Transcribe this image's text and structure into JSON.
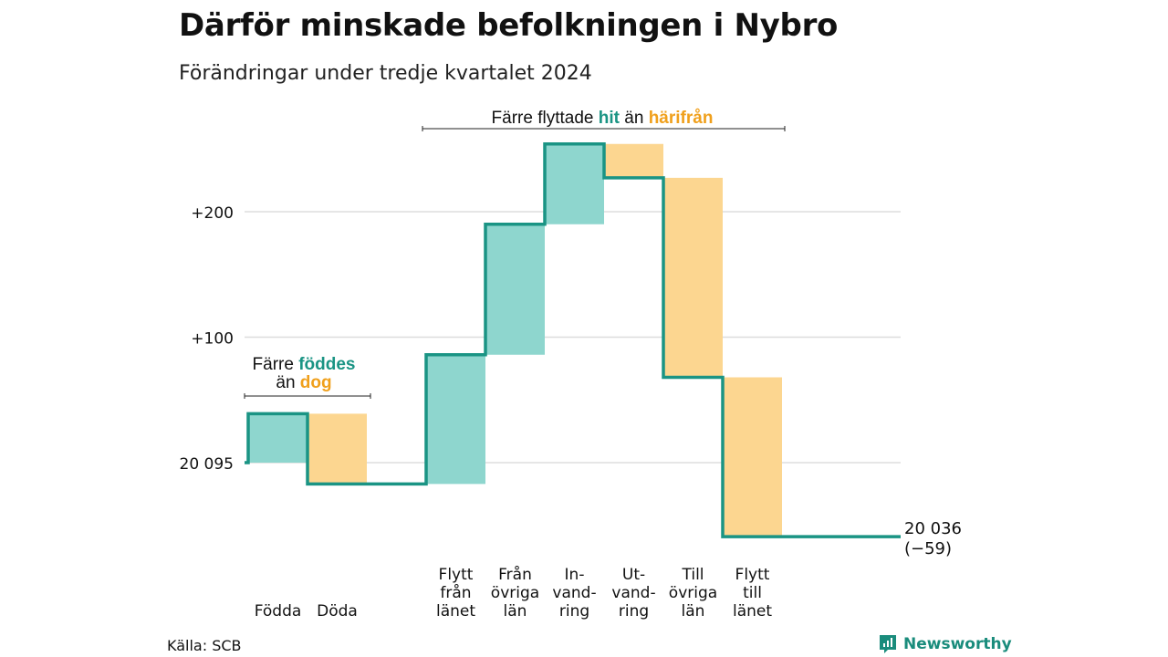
{
  "title": "Därför minskade befolkningen i Nybro",
  "subtitle": "Förändringar under tredje kvartalet 2024",
  "source": "Källa: SCB",
  "brand": "Newsworthy",
  "colors": {
    "increase": "#8ed6ce",
    "decrease": "#fcd690",
    "line": "#1a9484",
    "accent_teal": "#1a9484",
    "accent_orange": "#f0a01c",
    "grid": "#dddddd"
  },
  "annotations": {
    "births": {
      "pre": "Färre ",
      "a": "föddes",
      "mid": "än ",
      "b": "dog"
    },
    "migration": {
      "pre": "Färre flyttade ",
      "a": "hit",
      "mid": " än ",
      "b": "härifrån"
    }
  },
  "chart_data": {
    "type": "waterfall",
    "base": 20095,
    "end_label": "20 036",
    "end_change": "(−59)",
    "ylim": [
      -59,
      257
    ],
    "y_ticks": [
      {
        "value": 0,
        "label": "20 095"
      },
      {
        "value": 100,
        "label": "+100"
      },
      {
        "value": 200,
        "label": "+200"
      }
    ],
    "steps": [
      {
        "label": [
          "Födda"
        ],
        "value": 39
      },
      {
        "label": [
          "Döda"
        ],
        "value": -56
      },
      {
        "label": [
          "Flytt",
          "från",
          "länet"
        ],
        "value": 103
      },
      {
        "label": [
          "Från",
          "övriga",
          "län"
        ],
        "value": 104
      },
      {
        "label": [
          "In-",
          "vand-",
          "ring"
        ],
        "value": 64
      },
      {
        "label": [
          "Ut-",
          "vand-",
          "ring"
        ],
        "value": -27
      },
      {
        "label": [
          "Till",
          "övriga",
          "län"
        ],
        "value": -159
      },
      {
        "label": [
          "Flytt",
          "till",
          "länet"
        ],
        "value": -127
      }
    ]
  }
}
